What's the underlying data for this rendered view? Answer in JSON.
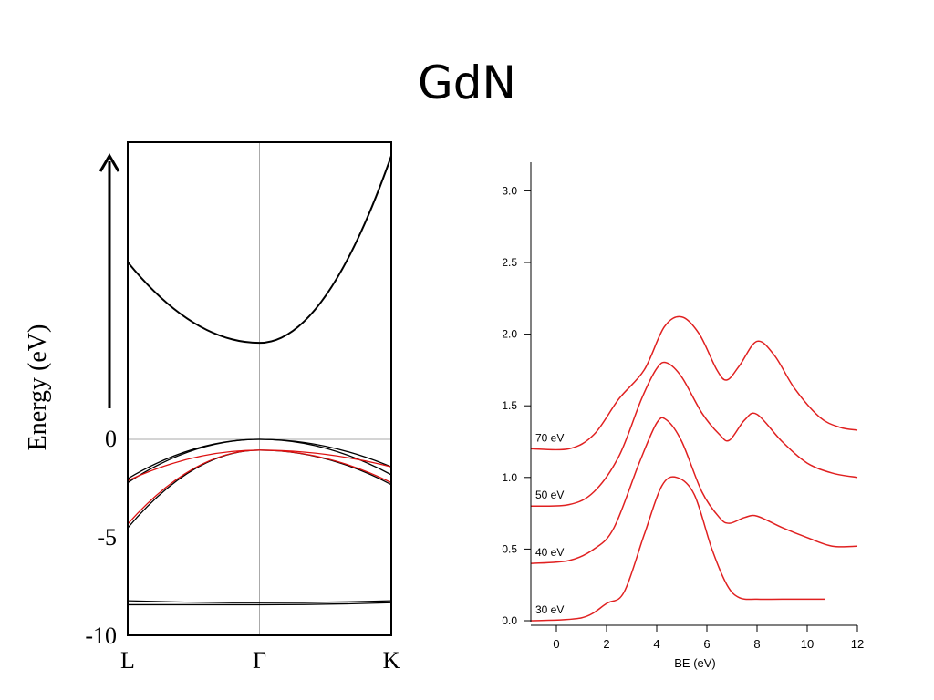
{
  "title": "GdN",
  "chart_data": [
    {
      "type": "line",
      "ylabel": "Energy (eV)",
      "y_ticks": [
        "0",
        "-5",
        "-10"
      ],
      "ylim": [
        -10,
        10
      ],
      "x_ticks": [
        "L",
        "Γ",
        "K"
      ],
      "grid": "vertical line at Γ, horizontal line at 0",
      "series": [
        {
          "color": "#000000",
          "points": [
            [
              0,
              9.0
            ],
            [
              0.5,
              4.9
            ],
            [
              1,
              14.4
            ]
          ]
        },
        {
          "color": "#000000",
          "points": [
            [
              0,
              -2.2
            ],
            [
              0.5,
              0.0
            ],
            [
              1,
              -1.8
            ]
          ]
        },
        {
          "color": "#000000",
          "points": [
            [
              0,
              -2.0
            ],
            [
              0.5,
              0.0
            ],
            [
              1,
              -1.4
            ]
          ]
        },
        {
          "color": "#000000",
          "points": [
            [
              0,
              -4.5
            ],
            [
              0.5,
              -0.55
            ],
            [
              1,
              -2.3
            ]
          ]
        },
        {
          "color": "#000000",
          "points": [
            [
              0,
              -8.2
            ],
            [
              0.5,
              -8.3
            ],
            [
              1,
              -8.2
            ]
          ]
        },
        {
          "color": "#000000",
          "points": [
            [
              0,
              -8.4
            ],
            [
              0.5,
              -8.4
            ],
            [
              1,
              -8.3
            ]
          ]
        },
        {
          "color": "#dd1111",
          "points": [
            [
              0,
              -2.1
            ],
            [
              0.5,
              -0.55
            ],
            [
              1,
              -1.4
            ]
          ]
        },
        {
          "color": "#dd1111",
          "points": [
            [
              0,
              -4.3
            ],
            [
              0.5,
              -0.55
            ],
            [
              1,
              -2.2
            ]
          ]
        }
      ]
    },
    {
      "type": "line",
      "xlabel": "BE (eV)",
      "xlim": [
        -1,
        12
      ],
      "ylim": [
        0,
        3.2
      ],
      "x_ticks": [
        "0",
        "2",
        "4",
        "6",
        "8",
        "10",
        "12"
      ],
      "y_ticks": [
        "0.0",
        "0.5",
        "1.0",
        "1.5",
        "2.0",
        "2.5",
        "3.0"
      ],
      "series": [
        {
          "name": "30 eV",
          "color": "#e02020",
          "x": [
            -1,
            1,
            2,
            2.7,
            3.5,
            4.2,
            4.8,
            5.5,
            6.2,
            6.8,
            7.3,
            8,
            9,
            10.7
          ],
          "y": [
            0.0,
            0.02,
            0.12,
            0.2,
            0.6,
            0.94,
            1.0,
            0.88,
            0.5,
            0.25,
            0.16,
            0.15,
            0.15,
            0.15
          ]
        },
        {
          "name": "40 eV",
          "color": "#e02020",
          "x": [
            -1,
            0.5,
            1.5,
            2.3,
            3.3,
            4.0,
            4.4,
            5.0,
            5.8,
            6.5,
            6.9,
            7.5,
            8.0,
            9,
            10,
            11,
            12
          ],
          "y": [
            0.4,
            0.42,
            0.5,
            0.65,
            1.1,
            1.38,
            1.4,
            1.25,
            0.9,
            0.72,
            0.68,
            0.72,
            0.73,
            0.65,
            0.58,
            0.52,
            0.52
          ]
        },
        {
          "name": "50 eV",
          "color": "#e02020",
          "x": [
            -1,
            0.5,
            1.5,
            2.5,
            3.4,
            4.0,
            4.4,
            5.0,
            5.8,
            6.5,
            6.9,
            7.5,
            8.0,
            9,
            10,
            11,
            12
          ],
          "y": [
            0.8,
            0.81,
            0.9,
            1.15,
            1.55,
            1.76,
            1.8,
            1.7,
            1.45,
            1.3,
            1.26,
            1.4,
            1.44,
            1.25,
            1.1,
            1.03,
            1.0
          ]
        },
        {
          "name": "70 eV",
          "color": "#e02020",
          "x": [
            -1,
            0.5,
            1.5,
            2.5,
            3.5,
            4.3,
            5.0,
            5.7,
            6.4,
            6.8,
            7.3,
            8.0,
            8.7,
            9.5,
            10.5,
            11.3,
            12
          ],
          "y": [
            1.2,
            1.2,
            1.3,
            1.55,
            1.75,
            2.05,
            2.12,
            2.0,
            1.75,
            1.68,
            1.78,
            1.95,
            1.85,
            1.62,
            1.42,
            1.35,
            1.33
          ]
        }
      ]
    }
  ]
}
